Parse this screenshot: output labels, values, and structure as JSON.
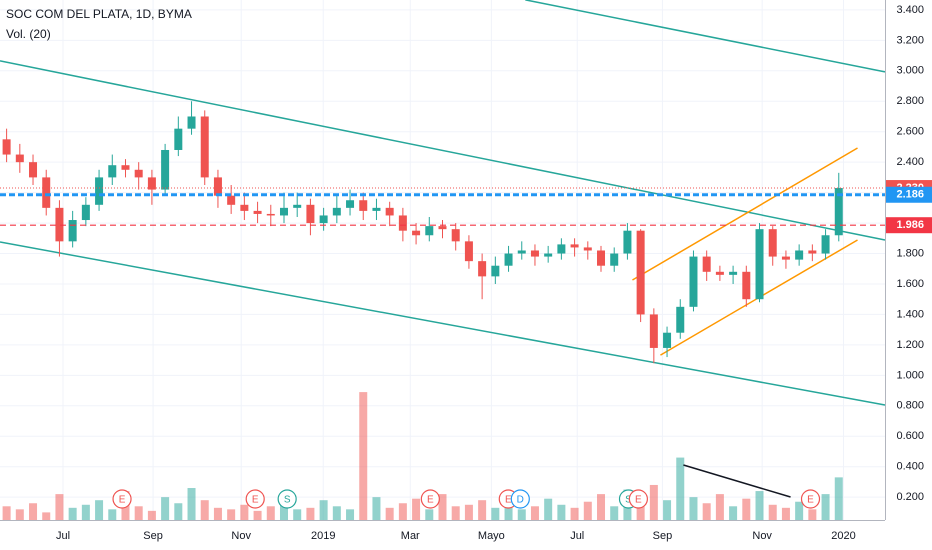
{
  "chart_data": {
    "type": "candlestick",
    "title": "SOC COM DEL PLATA, 1D, BYMA",
    "subtitle": "Vol. (20)",
    "x": [
      0,
      1,
      2,
      3,
      4,
      5,
      6,
      7,
      8,
      9,
      10,
      11,
      12,
      13,
      14,
      15,
      16,
      17,
      18,
      19,
      20,
      21,
      22,
      23,
      24,
      25,
      26,
      27,
      28,
      29,
      30,
      31,
      32,
      33,
      34,
      35,
      36,
      37,
      38,
      39,
      40,
      41,
      42,
      43,
      44,
      45,
      46,
      47,
      48,
      49,
      50,
      51,
      52,
      53,
      54,
      55,
      56,
      57,
      58,
      59,
      60,
      61,
      62,
      63
    ],
    "open": [
      2.55,
      2.45,
      2.4,
      2.3,
      2.1,
      1.88,
      2.02,
      2.12,
      2.3,
      2.38,
      2.35,
      2.3,
      2.22,
      2.48,
      2.62,
      2.7,
      2.3,
      2.18,
      2.12,
      2.08,
      2.06,
      2.05,
      2.1,
      2.12,
      2.0,
      2.05,
      2.1,
      2.15,
      2.08,
      2.1,
      2.05,
      1.95,
      1.92,
      1.98,
      1.96,
      1.88,
      1.75,
      1.65,
      1.72,
      1.8,
      1.82,
      1.78,
      1.8,
      1.86,
      1.84,
      1.82,
      1.72,
      1.8,
      1.95,
      1.4,
      1.18,
      1.28,
      1.45,
      1.78,
      1.68,
      1.66,
      1.68,
      1.5,
      1.96,
      1.78,
      1.76,
      1.82,
      1.8,
      1.92
    ],
    "high": [
      2.62,
      2.52,
      2.45,
      2.35,
      2.15,
      2.08,
      2.17,
      2.35,
      2.45,
      2.42,
      2.4,
      2.35,
      2.52,
      2.7,
      2.8,
      2.74,
      2.35,
      2.25,
      2.2,
      2.14,
      2.12,
      2.2,
      2.2,
      2.16,
      2.1,
      2.18,
      2.22,
      2.2,
      2.16,
      2.14,
      2.1,
      2.0,
      2.04,
      2.02,
      2.0,
      1.92,
      1.8,
      1.78,
      1.85,
      1.88,
      1.86,
      1.85,
      1.9,
      1.9,
      1.88,
      1.85,
      1.84,
      2.0,
      1.96,
      1.44,
      1.32,
      1.5,
      1.82,
      1.82,
      1.72,
      1.72,
      1.72,
      2.0,
      1.98,
      1.82,
      1.86,
      1.86,
      1.96,
      2.33
    ],
    "low": [
      2.4,
      2.33,
      2.25,
      2.05,
      1.78,
      1.84,
      1.98,
      2.08,
      2.25,
      2.3,
      2.22,
      2.12,
      2.18,
      2.44,
      2.58,
      2.25,
      2.1,
      2.06,
      2.02,
      2.0,
      1.98,
      2.0,
      2.04,
      1.92,
      1.95,
      2.0,
      2.05,
      2.02,
      2.02,
      1.98,
      1.88,
      1.86,
      1.88,
      1.9,
      1.82,
      1.7,
      1.5,
      1.6,
      1.68,
      1.76,
      1.72,
      1.74,
      1.76,
      1.78,
      1.76,
      1.68,
      1.68,
      1.76,
      1.35,
      1.08,
      1.12,
      1.24,
      1.42,
      1.62,
      1.62,
      1.6,
      1.45,
      1.48,
      1.72,
      1.7,
      1.72,
      1.75,
      1.76,
      1.88
    ],
    "close": [
      2.45,
      2.4,
      2.3,
      2.1,
      1.88,
      2.02,
      2.12,
      2.3,
      2.38,
      2.35,
      2.3,
      2.22,
      2.48,
      2.62,
      2.7,
      2.3,
      2.18,
      2.12,
      2.08,
      2.06,
      2.05,
      2.1,
      2.12,
      2.0,
      2.05,
      2.1,
      2.15,
      2.08,
      2.1,
      2.05,
      1.95,
      1.92,
      1.98,
      1.96,
      1.88,
      1.75,
      1.65,
      1.72,
      1.8,
      1.82,
      1.78,
      1.8,
      1.86,
      1.84,
      1.82,
      1.72,
      1.8,
      1.95,
      1.4,
      1.18,
      1.28,
      1.45,
      1.78,
      1.68,
      1.66,
      1.68,
      1.5,
      1.96,
      1.78,
      1.76,
      1.82,
      1.8,
      1.92,
      2.23
    ],
    "volume": [
      0.14,
      0.12,
      0.16,
      0.1,
      0.22,
      0.13,
      0.15,
      0.18,
      0.12,
      0.24,
      0.14,
      0.11,
      0.2,
      0.16,
      0.26,
      0.18,
      0.13,
      0.12,
      0.15,
      0.11,
      0.14,
      0.17,
      0.12,
      0.13,
      0.18,
      0.14,
      0.12,
      0.89,
      0.2,
      0.13,
      0.16,
      0.19,
      0.12,
      0.22,
      0.14,
      0.15,
      0.18,
      0.13,
      0.16,
      0.12,
      0.14,
      0.19,
      0.15,
      0.13,
      0.17,
      0.22,
      0.14,
      0.25,
      0.21,
      0.28,
      0.18,
      0.46,
      0.2,
      0.16,
      0.22,
      0.14,
      0.19,
      0.24,
      0.15,
      0.13,
      0.17,
      0.12,
      0.22,
      0.33
    ],
    "up_color": "#26a69a",
    "down_color": "#ef5350",
    "xlim": [
      -0.5,
      66.5
    ],
    "xticks": [
      {
        "value": 4.27,
        "label": "Jul"
      },
      {
        "value": 11.09,
        "label": "Sep"
      },
      {
        "value": 17.76,
        "label": "Nov"
      },
      {
        "value": 23.97,
        "label": "2019"
      },
      {
        "value": 30.56,
        "label": "Mar"
      },
      {
        "value": 36.7,
        "label": "Mayo"
      },
      {
        "value": 43.2,
        "label": "Jul"
      },
      {
        "value": 49.65,
        "label": "Sep"
      },
      {
        "value": 57.2,
        "label": "Nov"
      },
      {
        "value": 63.36,
        "label": "2020"
      }
    ],
    "ylim": [
      0.05,
      3.465
    ],
    "yticks": [
      {
        "value": 0.2,
        "label": "0.200"
      },
      {
        "value": 0.4,
        "label": "0.400"
      },
      {
        "value": 0.6,
        "label": "0.600"
      },
      {
        "value": 0.8,
        "label": "0.800"
      },
      {
        "value": 1.0,
        "label": "1.000"
      },
      {
        "value": 1.2,
        "label": "1.200"
      },
      {
        "value": 1.4,
        "label": "1.400"
      },
      {
        "value": 1.6,
        "label": "1.600"
      },
      {
        "value": 1.8,
        "label": "1.800"
      },
      {
        "value": 2.0,
        "label": "2.000"
      },
      {
        "value": 2.2,
        "label": "2.200"
      },
      {
        "value": 2.4,
        "label": "2.400"
      },
      {
        "value": 2.6,
        "label": "2.600"
      },
      {
        "value": 2.8,
        "label": "2.800"
      },
      {
        "value": 3.0,
        "label": "3.000"
      },
      {
        "value": 3.2,
        "label": "3.200"
      },
      {
        "value": 3.4,
        "label": "3.400"
      }
    ],
    "grid": true,
    "price_lines": [
      {
        "value": 2.23,
        "label": "2.230",
        "color": "#ef5350",
        "style": "dotted"
      },
      {
        "value": 2.186,
        "label": "2.186",
        "color": "#2196f3",
        "style": "dashed-bold"
      },
      {
        "value": 1.986,
        "label": "1.986",
        "color": "#f23645",
        "style": "dashed"
      }
    ],
    "trendlines": [
      {
        "x": [
          -0.5,
          66.5
        ],
        "y": [
          3.065,
          1.889
        ],
        "color": "#26a69a"
      },
      {
        "x": [
          39.27,
          66.5
        ],
        "y": [
          3.466,
          2.993
        ],
        "color": "#26a69a"
      },
      {
        "x": [
          -0.5,
          66.5
        ],
        "y": [
          1.876,
          0.805
        ],
        "color": "#26a69a"
      },
      {
        "x": [
          47.38,
          64.42
        ],
        "y": [
          1.626,
          2.493
        ],
        "color": "#ff9800"
      },
      {
        "x": [
          49.5,
          64.42
        ],
        "y": [
          1.133,
          1.889
        ],
        "color": "#ff9800"
      },
      {
        "x": [
          51.24,
          59.35
        ],
        "y": [
          0.411,
          0.201
        ],
        "color": "#131722"
      }
    ],
    "events": [
      {
        "x": 8.74,
        "label": "E",
        "color": "#ef5350"
      },
      {
        "x": 18.82,
        "label": "E",
        "color": "#ef5350"
      },
      {
        "x": 21.24,
        "label": "S",
        "color": "#26a69a"
      },
      {
        "x": 32.08,
        "label": "E",
        "color": "#ef5350"
      },
      {
        "x": 37.98,
        "label": "E",
        "color": "#ef5350"
      },
      {
        "x": 38.89,
        "label": "D",
        "color": "#2196f3"
      },
      {
        "x": 47.08,
        "label": "S",
        "color": "#26a69a"
      },
      {
        "x": 47.83,
        "label": "E",
        "color": "#ef5350"
      },
      {
        "x": 60.86,
        "label": "E",
        "color": "#ef5350"
      }
    ]
  }
}
